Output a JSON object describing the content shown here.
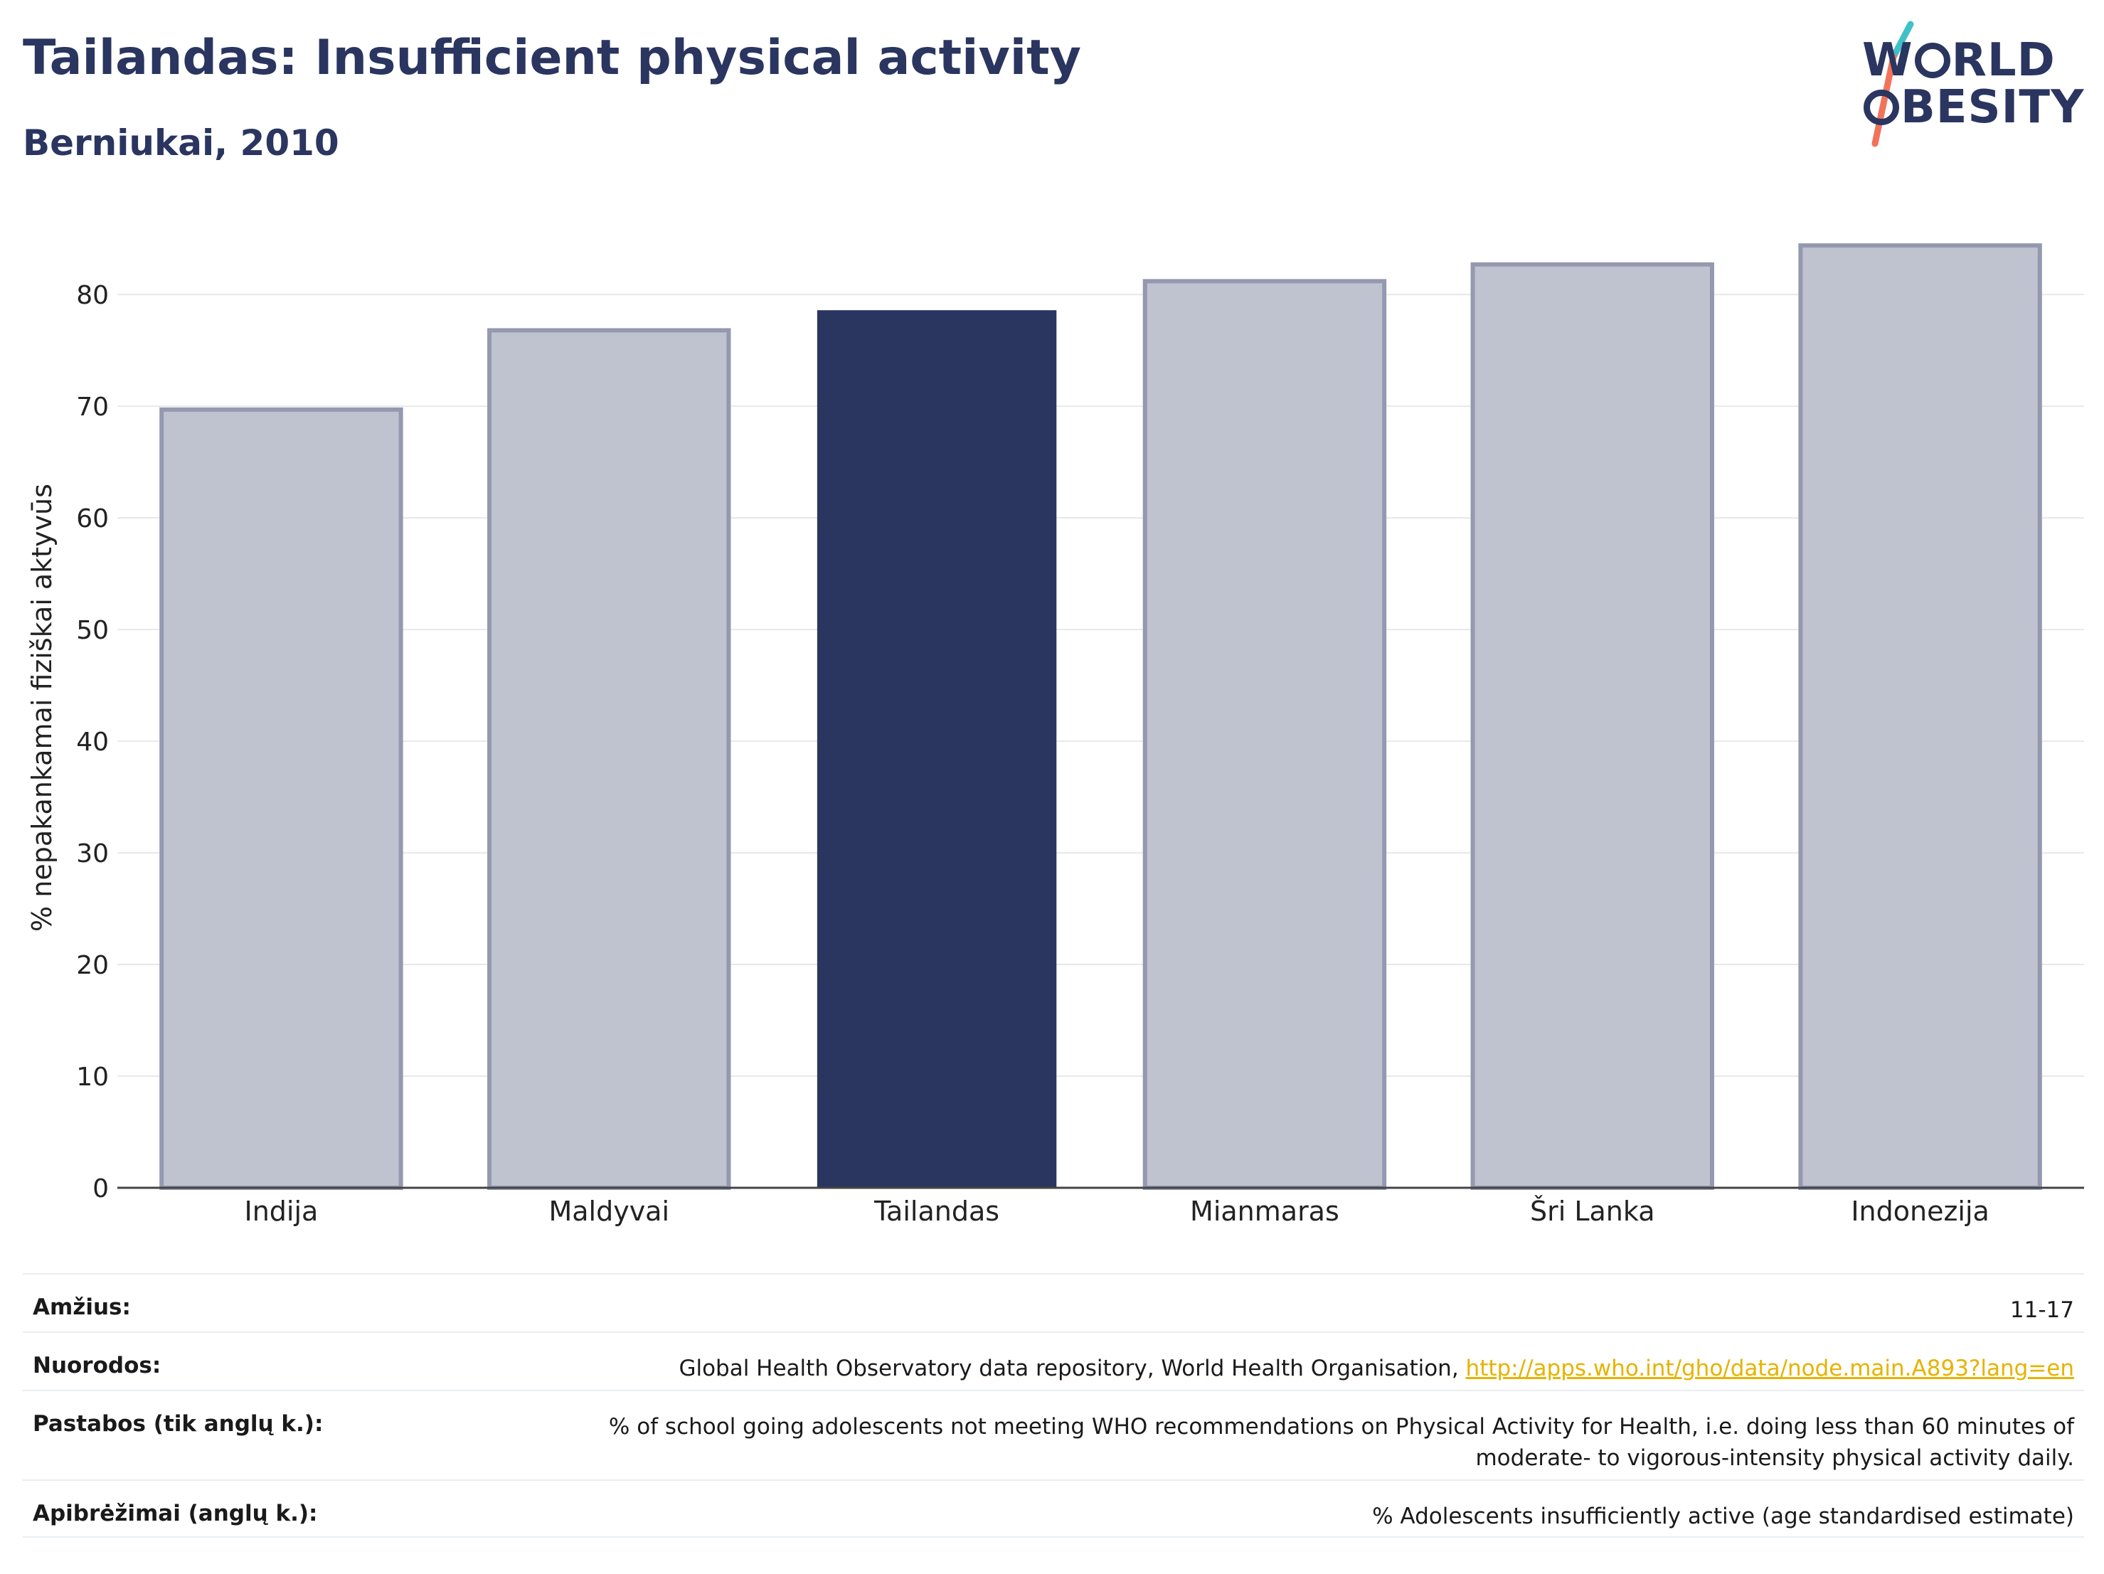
{
  "header": {
    "title": "Tailandas: Insufficient physical activity",
    "subtitle": "Berniukai, 2010"
  },
  "logo": {
    "line1": "W",
    "line1b": "RLD",
    "line2": "BESITY",
    "slash_color_top": "#3ec1c9",
    "slash_color_bottom": "#f0735a"
  },
  "chart_data": {
    "type": "bar",
    "title": "Tailandas: Insufficient physical activity",
    "subtitle": "Berniukai, 2010",
    "categories": [
      "Indija",
      "Maldyvai",
      "Tailandas",
      "Mianmaras",
      "Šri Lanka",
      "Indonezija"
    ],
    "values": [
      69.7,
      76.8,
      78.6,
      81.2,
      82.7,
      84.4
    ],
    "highlight": "Tailandas",
    "ylabel": "% nepakankamai fiziškai aktyvūs",
    "xlabel": "",
    "ylim": [
      0,
      86
    ],
    "yticks": [
      0,
      10,
      20,
      30,
      40,
      50,
      60,
      70,
      80
    ],
    "grid": true,
    "colors": {
      "highlight": "#2a3560",
      "other_fill": "#bfc3cf",
      "other_stroke": "#9499b0"
    }
  },
  "info": {
    "rows": [
      {
        "label": "Amžius:",
        "value": "11-17"
      },
      {
        "label": "Nuorodos:",
        "value": "Global Health Observatory data repository, World Health Organisation, ",
        "link": "http://apps.who.int/gho/data/node.main.A893?lang=en"
      },
      {
        "label": "Pastabos (tik anglų k.):",
        "value": "% of school going adolescents not meeting WHO recommendations on Physical Activity for Health, i.e. doing less than 60 minutes of moderate- to vigorous-intensity physical activity daily."
      },
      {
        "label": "Apibrėžimai (anglų k.):",
        "value": "% Adolescents insufficiently active (age standardised estimate)"
      }
    ]
  }
}
